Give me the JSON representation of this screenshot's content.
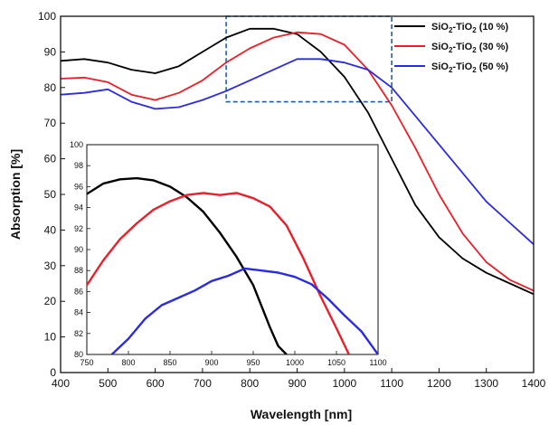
{
  "chart_data": [
    {
      "type": "line",
      "xlabel": "Wavelength [nm]",
      "ylabel": "Absorption [%]",
      "xlim": [
        400,
        1400
      ],
      "ylim": [
        0,
        100
      ],
      "xticks": [
        400,
        500,
        600,
        700,
        800,
        900,
        1000,
        1100,
        1200,
        1300,
        1400
      ],
      "yticks": [
        0,
        10,
        20,
        30,
        40,
        50,
        60,
        70,
        80,
        90,
        100
      ],
      "legend_position": "top-right",
      "zoom_box": {
        "x": [
          750,
          1100
        ],
        "y": [
          76,
          100
        ],
        "style": "dashed",
        "color": "#1f5fa8"
      },
      "series": [
        {
          "name": "SiO2-TiO2 (10 %)",
          "label_main": "SiO",
          "label_sub1": "2",
          "label_mid": "-TiO",
          "label_sub2": "2",
          "label_tail": " (10 %)",
          "color": "#000000",
          "x": [
            400,
            450,
            500,
            550,
            600,
            650,
            700,
            750,
            800,
            850,
            900,
            950,
            1000,
            1050,
            1100,
            1150,
            1200,
            1250,
            1300,
            1350,
            1400
          ],
          "y": [
            87.5,
            88,
            87,
            85,
            84,
            86,
            90,
            94,
            96.5,
            96.5,
            95,
            90,
            83,
            73,
            60,
            47,
            38,
            32,
            28,
            25,
            22
          ]
        },
        {
          "name": "SiO2-TiO2 (30 %)",
          "label_main": "SiO",
          "label_sub1": "2",
          "label_mid": "-TiO",
          "label_sub2": "2",
          "label_tail": " (30 %)",
          "color": "#e8202a",
          "x": [
            400,
            450,
            500,
            550,
            600,
            650,
            700,
            750,
            800,
            850,
            900,
            950,
            1000,
            1050,
            1100,
            1150,
            1200,
            1250,
            1300,
            1350,
            1400
          ],
          "y": [
            82.5,
            82.8,
            81.5,
            78,
            76.5,
            78.5,
            82,
            87,
            91,
            94,
            95.5,
            95,
            92,
            85,
            75,
            63,
            50,
            39,
            31,
            26,
            23
          ]
        },
        {
          "name": "SiO2-TiO2 (50 %)",
          "label_main": "SiO",
          "label_sub1": "2",
          "label_mid": "-TiO",
          "label_sub2": "2",
          "label_tail": " (50 %)",
          "color": "#2b2be0",
          "x": [
            400,
            450,
            500,
            550,
            600,
            650,
            700,
            750,
            800,
            850,
            900,
            950,
            1000,
            1050,
            1100,
            1150,
            1200,
            1250,
            1300,
            1350,
            1400
          ],
          "y": [
            78,
            78.5,
            79.5,
            76,
            74,
            74.5,
            76.5,
            79,
            82,
            85,
            88,
            88,
            87,
            85,
            80,
            72,
            64,
            56,
            48,
            42,
            36
          ]
        }
      ]
    },
    {
      "type": "line",
      "inset": true,
      "xlim": [
        750,
        1100
      ],
      "ylim": [
        80,
        100
      ],
      "xticks": [
        750,
        800,
        850,
        900,
        950,
        1000,
        1050,
        1100
      ],
      "yticks": [
        80,
        82,
        84,
        86,
        88,
        90,
        92,
        94,
        96,
        98,
        100
      ],
      "series": [
        {
          "name": "SiO2-TiO2 (10 %)",
          "color": "#000000",
          "x": [
            750,
            770,
            790,
            810,
            830,
            850,
            870,
            890,
            910,
            930,
            950,
            960,
            970,
            980,
            990
          ],
          "y": [
            95.3,
            96.3,
            96.7,
            96.8,
            96.6,
            96,
            95,
            93.6,
            91.6,
            89.3,
            86.6,
            84.6,
            82.6,
            80.8,
            80
          ]
        },
        {
          "name": "SiO2-TiO2 (30 %)",
          "color": "#e8202a",
          "x": [
            750,
            770,
            790,
            810,
            830,
            850,
            870,
            890,
            910,
            930,
            950,
            970,
            990,
            1010,
            1030,
            1050,
            1065
          ],
          "y": [
            86.6,
            89,
            91,
            92.5,
            93.8,
            94.6,
            95.2,
            95.4,
            95.2,
            95.4,
            94.9,
            94.1,
            92.3,
            89.2,
            85.7,
            82.5,
            80
          ]
        },
        {
          "name": "SiO2-TiO2 (50 %)",
          "color": "#2b2be0",
          "x": [
            780,
            800,
            820,
            840,
            860,
            880,
            900,
            920,
            940,
            960,
            980,
            1000,
            1020,
            1040,
            1060,
            1080,
            1100
          ],
          "y": [
            80,
            81.5,
            83.4,
            84.7,
            85.4,
            86.1,
            87,
            87.5,
            88.2,
            88,
            87.8,
            87.4,
            86.7,
            85.3,
            83.7,
            82.2,
            80
          ]
        }
      ]
    }
  ]
}
